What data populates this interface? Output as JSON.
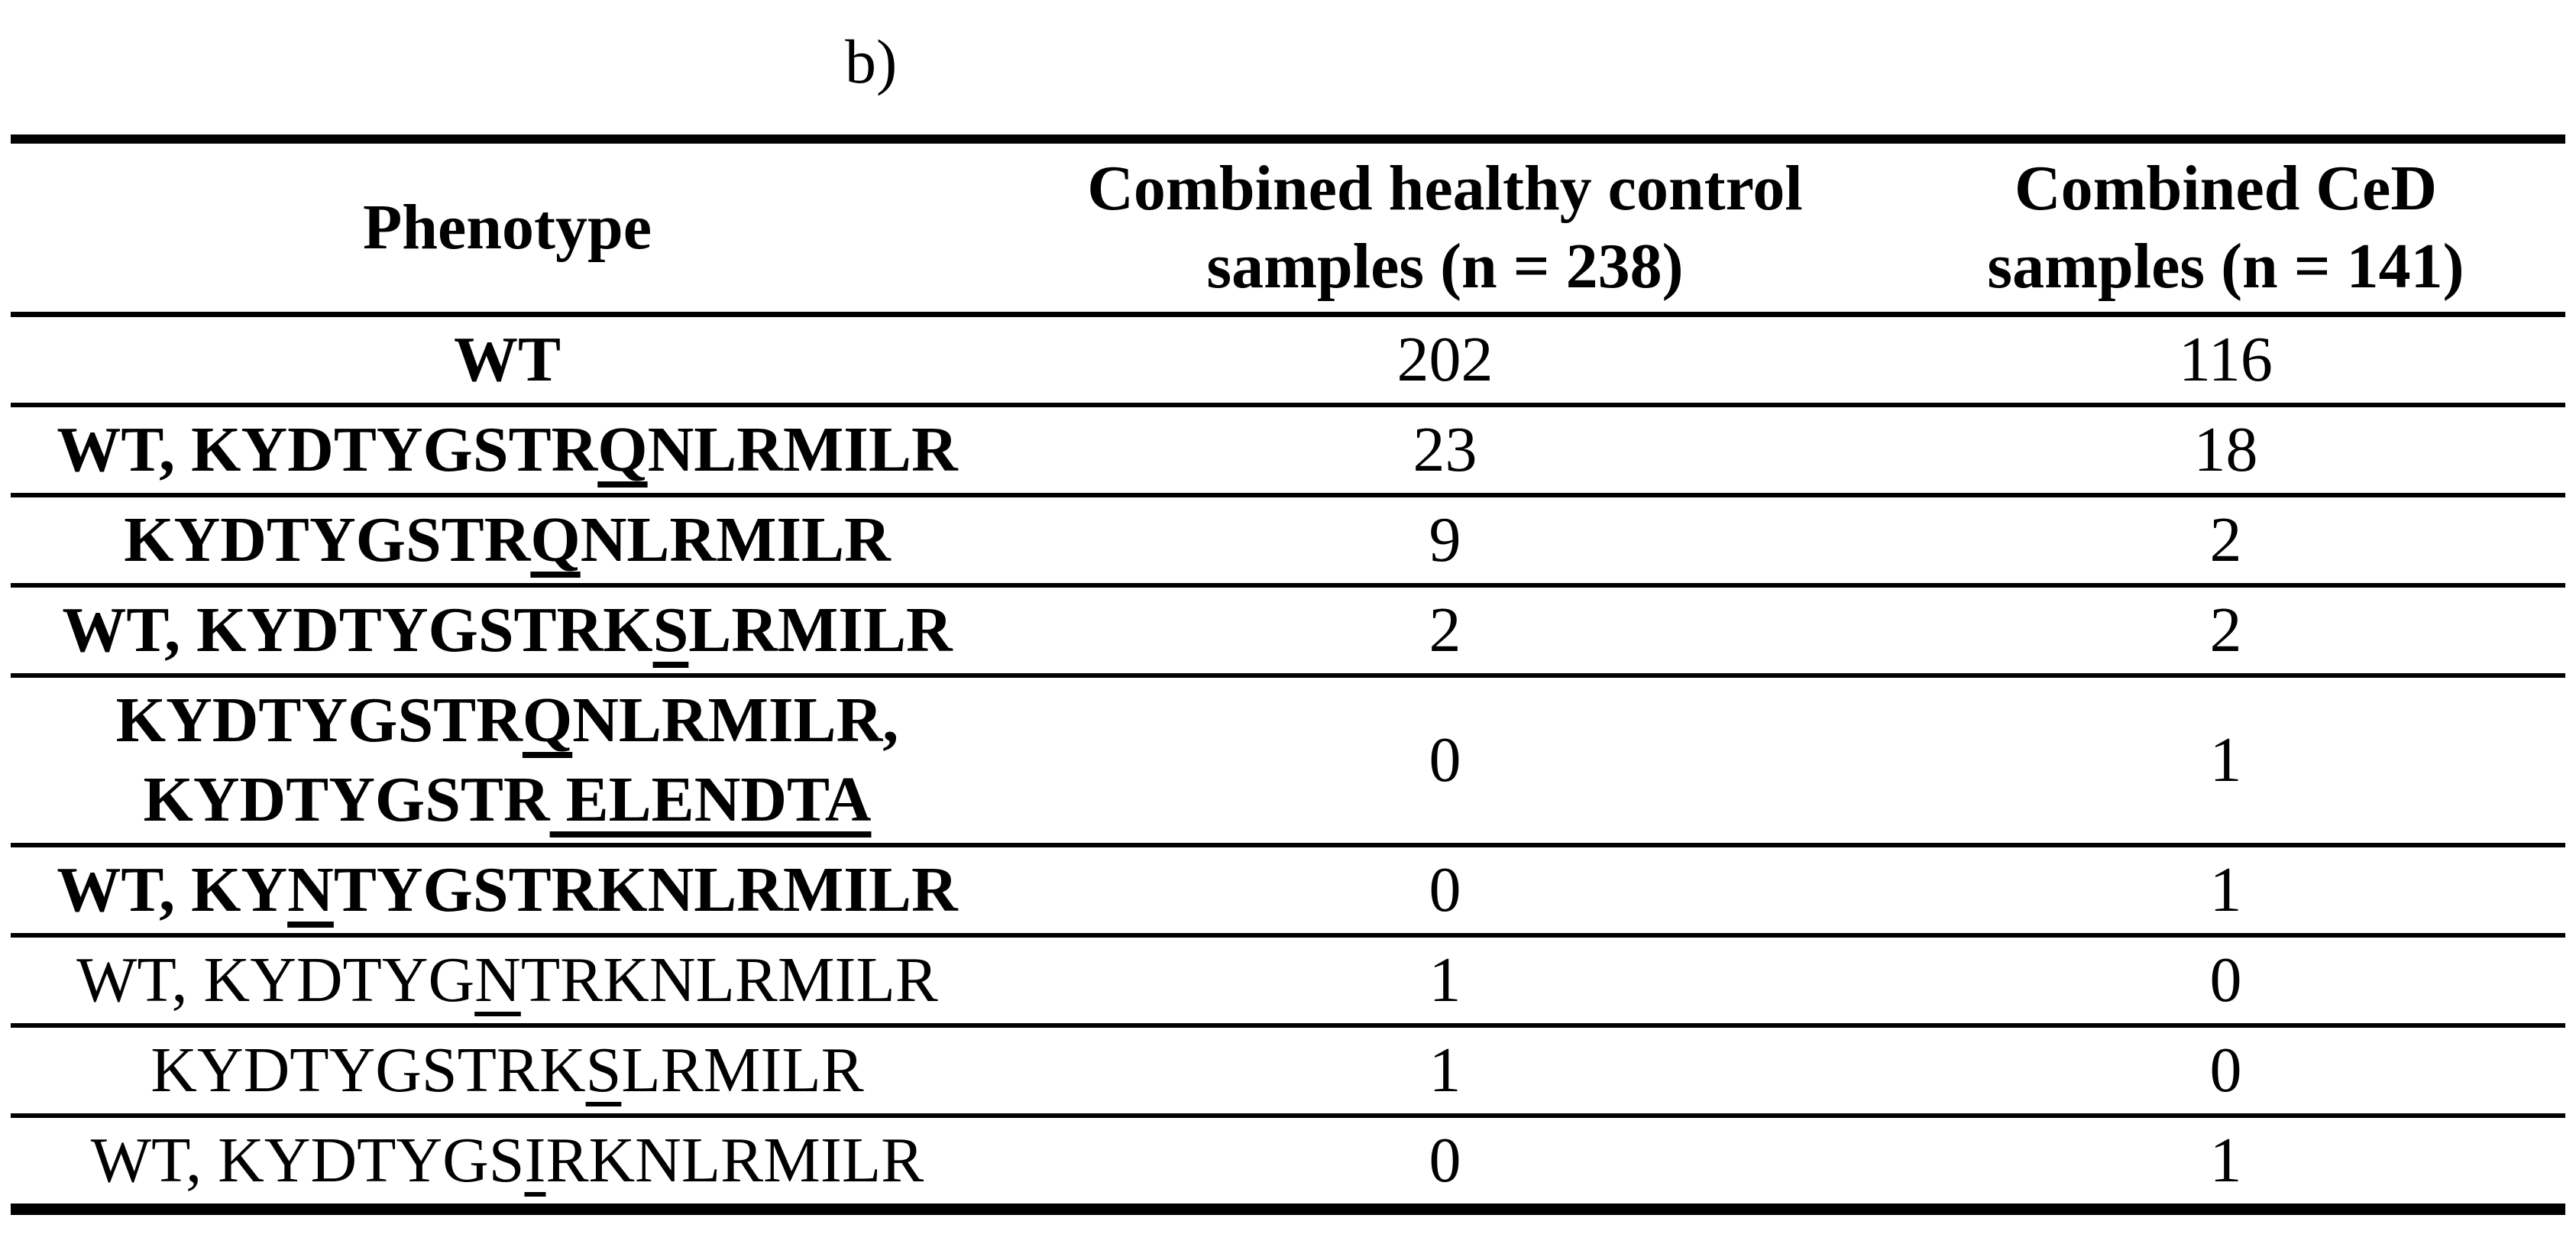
{
  "figure_label": "b)",
  "table": {
    "header": {
      "phenotype": "Phenotype",
      "healthy_line1": "Combined healthy control",
      "healthy_line2": "samples (n = 238)",
      "ced_line1": "Combined CeD",
      "ced_line2": "samples (n = 141)"
    },
    "rows": [
      {
        "bold": true,
        "phenotype_lines": [
          [
            {
              "t": "WT"
            }
          ]
        ],
        "healthy": "202",
        "ced": "116"
      },
      {
        "bold": true,
        "phenotype_lines": [
          [
            {
              "t": "WT, KYDTYGSTR"
            },
            {
              "t": "Q",
              "u": true
            },
            {
              "t": "NLRMILR"
            }
          ]
        ],
        "healthy": "23",
        "ced": "18"
      },
      {
        "bold": true,
        "phenotype_lines": [
          [
            {
              "t": "KYDTYGSTR"
            },
            {
              "t": "Q",
              "u": true
            },
            {
              "t": "NLRMILR"
            }
          ]
        ],
        "healthy": "9",
        "ced": "2"
      },
      {
        "bold": true,
        "phenotype_lines": [
          [
            {
              "t": "WT, KYDTYGSTRK"
            },
            {
              "t": "S",
              "u": true
            },
            {
              "t": "LRMILR"
            }
          ]
        ],
        "healthy": "2",
        "ced": "2"
      },
      {
        "bold": true,
        "phenotype_lines": [
          [
            {
              "t": "KYDTYGSTR"
            },
            {
              "t": "Q",
              "u": true
            },
            {
              "t": "NLRMILR,"
            }
          ],
          [
            {
              "t": "KYDTYGSTR"
            },
            {
              "t": " ELENDTA",
              "u": true
            }
          ]
        ],
        "healthy": "0",
        "ced": "1"
      },
      {
        "bold": true,
        "phenotype_lines": [
          [
            {
              "t": "WT, KY"
            },
            {
              "t": "N",
              "u": true
            },
            {
              "t": "TYGSTRKNLRMILR"
            }
          ]
        ],
        "healthy": "0",
        "ced": "1"
      },
      {
        "bold": false,
        "phenotype_lines": [
          [
            {
              "t": "WT, KYDTYG"
            },
            {
              "t": "N",
              "u": true
            },
            {
              "t": "TRKNLRMILR"
            }
          ]
        ],
        "healthy": "1",
        "ced": "0"
      },
      {
        "bold": false,
        "phenotype_lines": [
          [
            {
              "t": "KYDTYGSTRK"
            },
            {
              "t": "S",
              "u": true
            },
            {
              "t": "LRMILR"
            }
          ]
        ],
        "healthy": "1",
        "ced": "0"
      },
      {
        "bold": false,
        "phenotype_lines": [
          [
            {
              "t": "WT, KYDTYGS"
            },
            {
              "t": "I",
              "u": true
            },
            {
              "t": "RKNLRMILR"
            }
          ]
        ],
        "healthy": "0",
        "ced": "1"
      }
    ]
  }
}
